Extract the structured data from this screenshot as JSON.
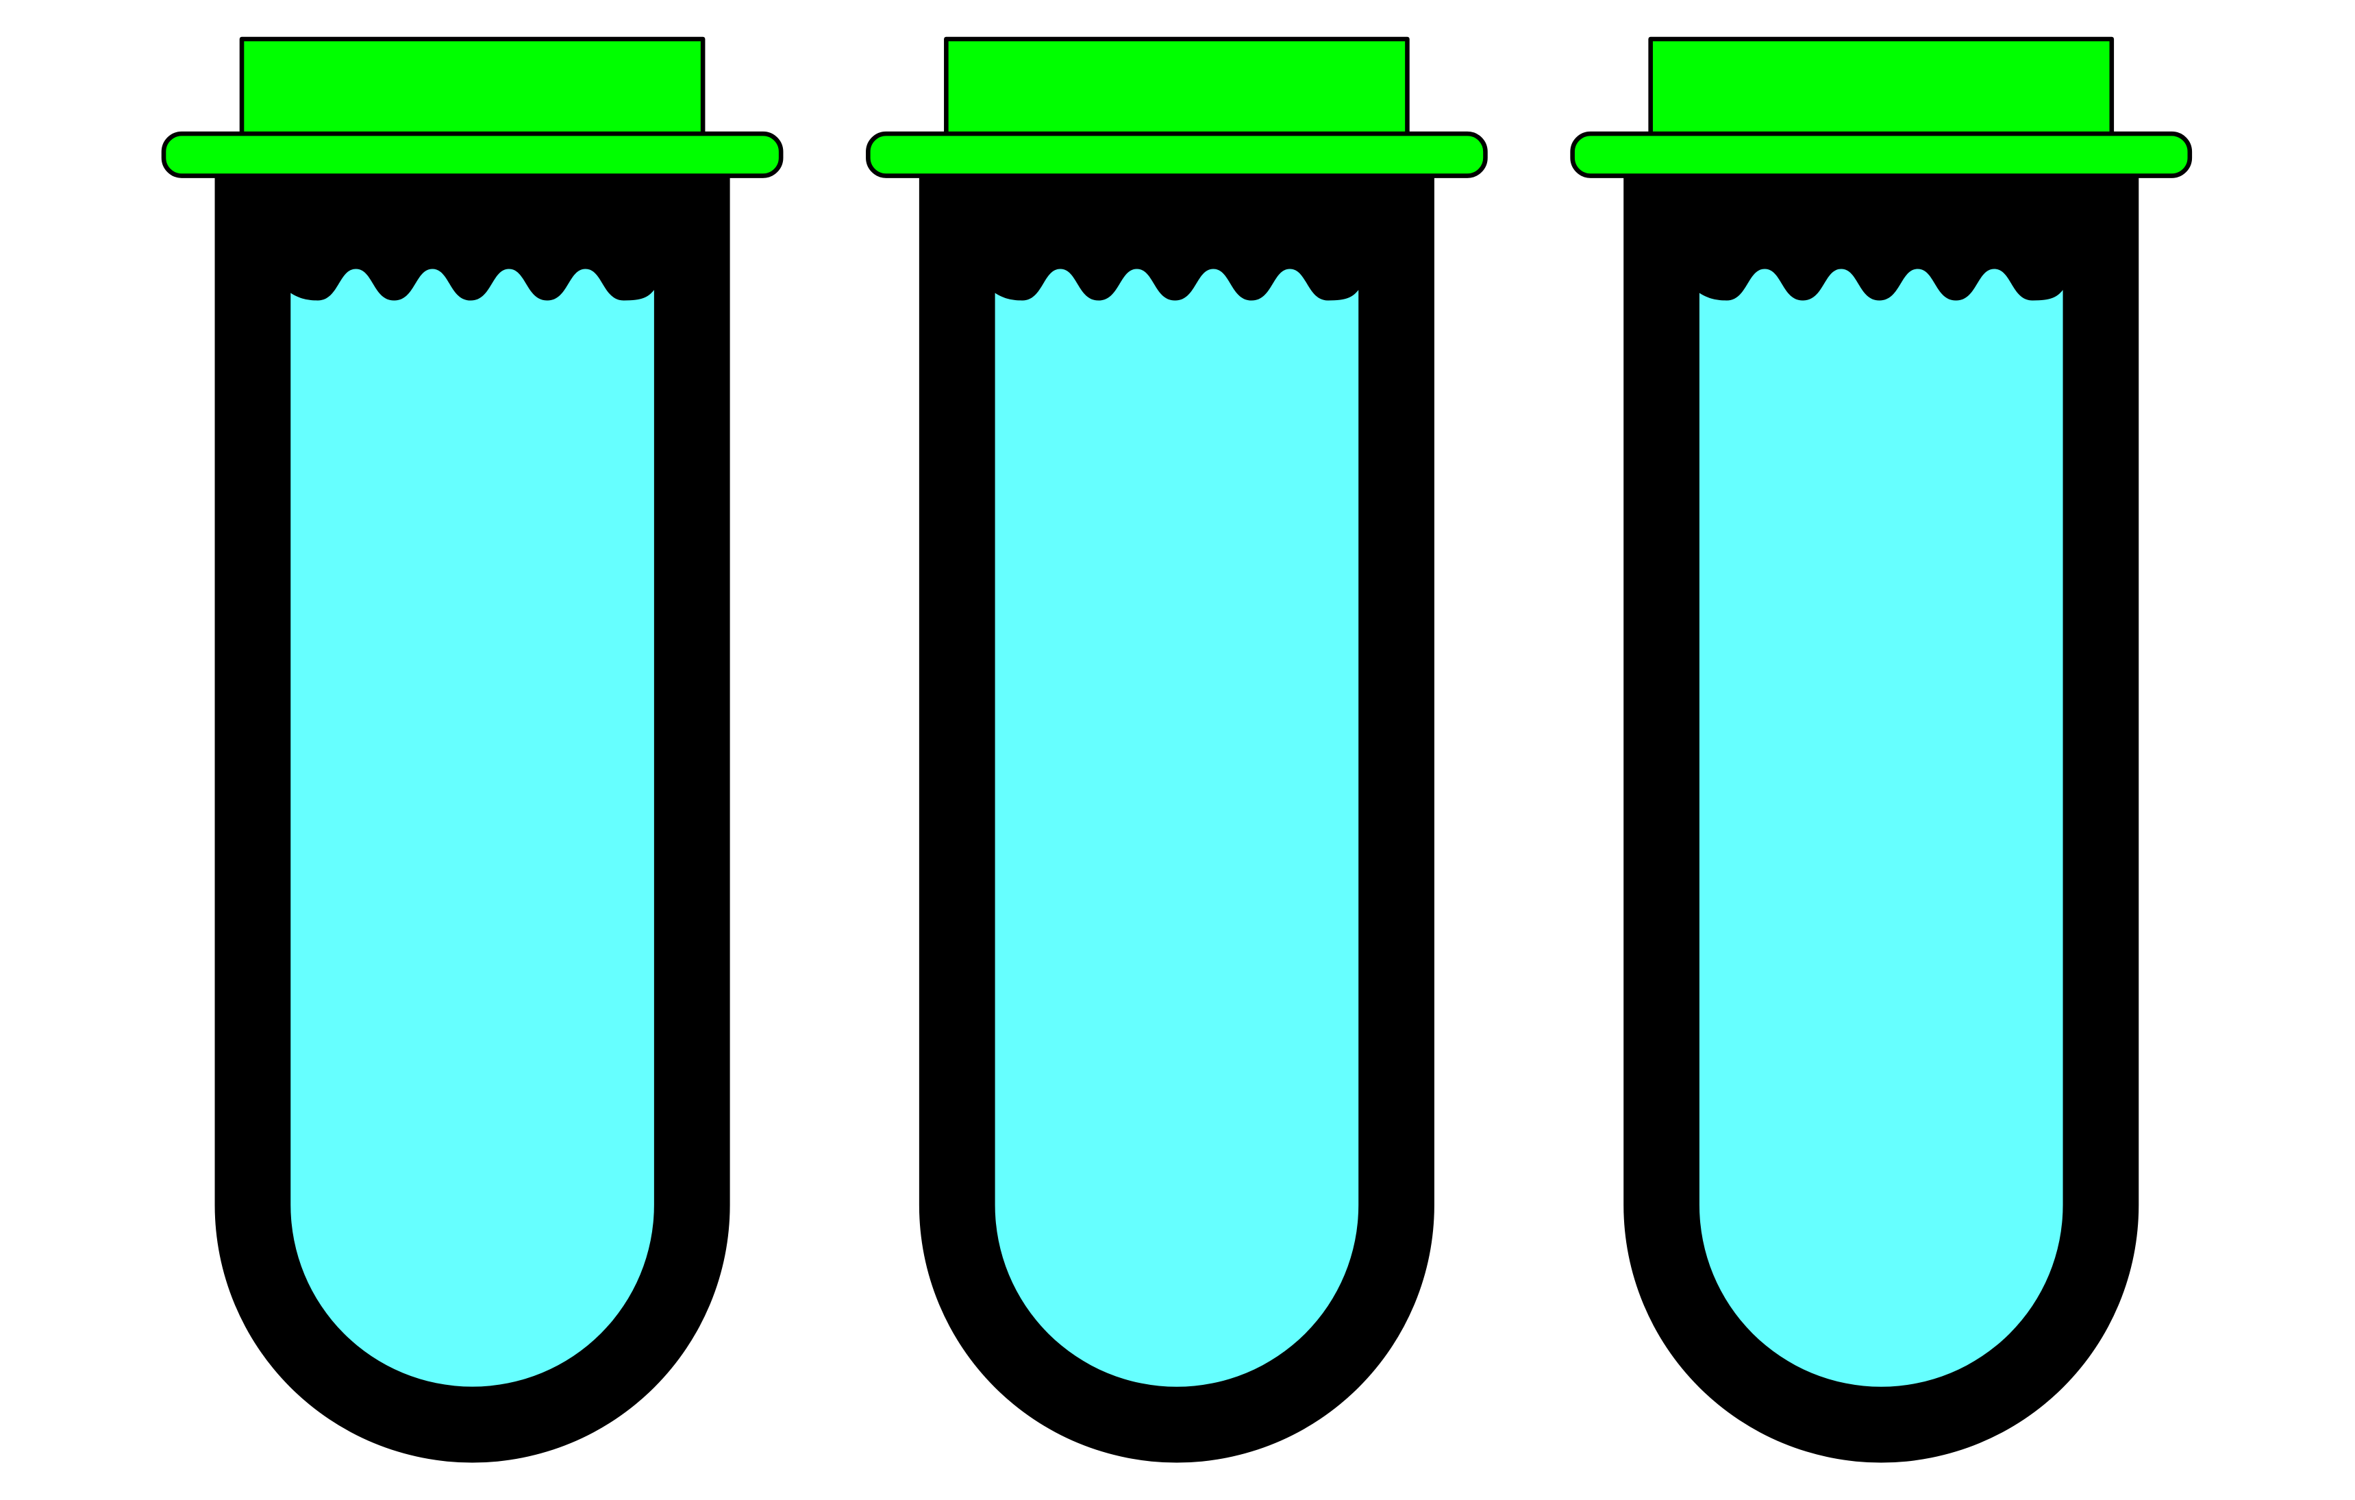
{
  "tubes": [
    {
      "name": "test-tube-1",
      "icon": "test-tube-icon"
    },
    {
      "name": "test-tube-2",
      "icon": "test-tube-icon"
    },
    {
      "name": "test-tube-3",
      "icon": "test-tube-icon"
    }
  ],
  "colors": {
    "background": "#ffffff",
    "tube_wall": "#000000",
    "liquid": "#66ffff",
    "cap": "#00ff00",
    "outline": "#000000"
  }
}
